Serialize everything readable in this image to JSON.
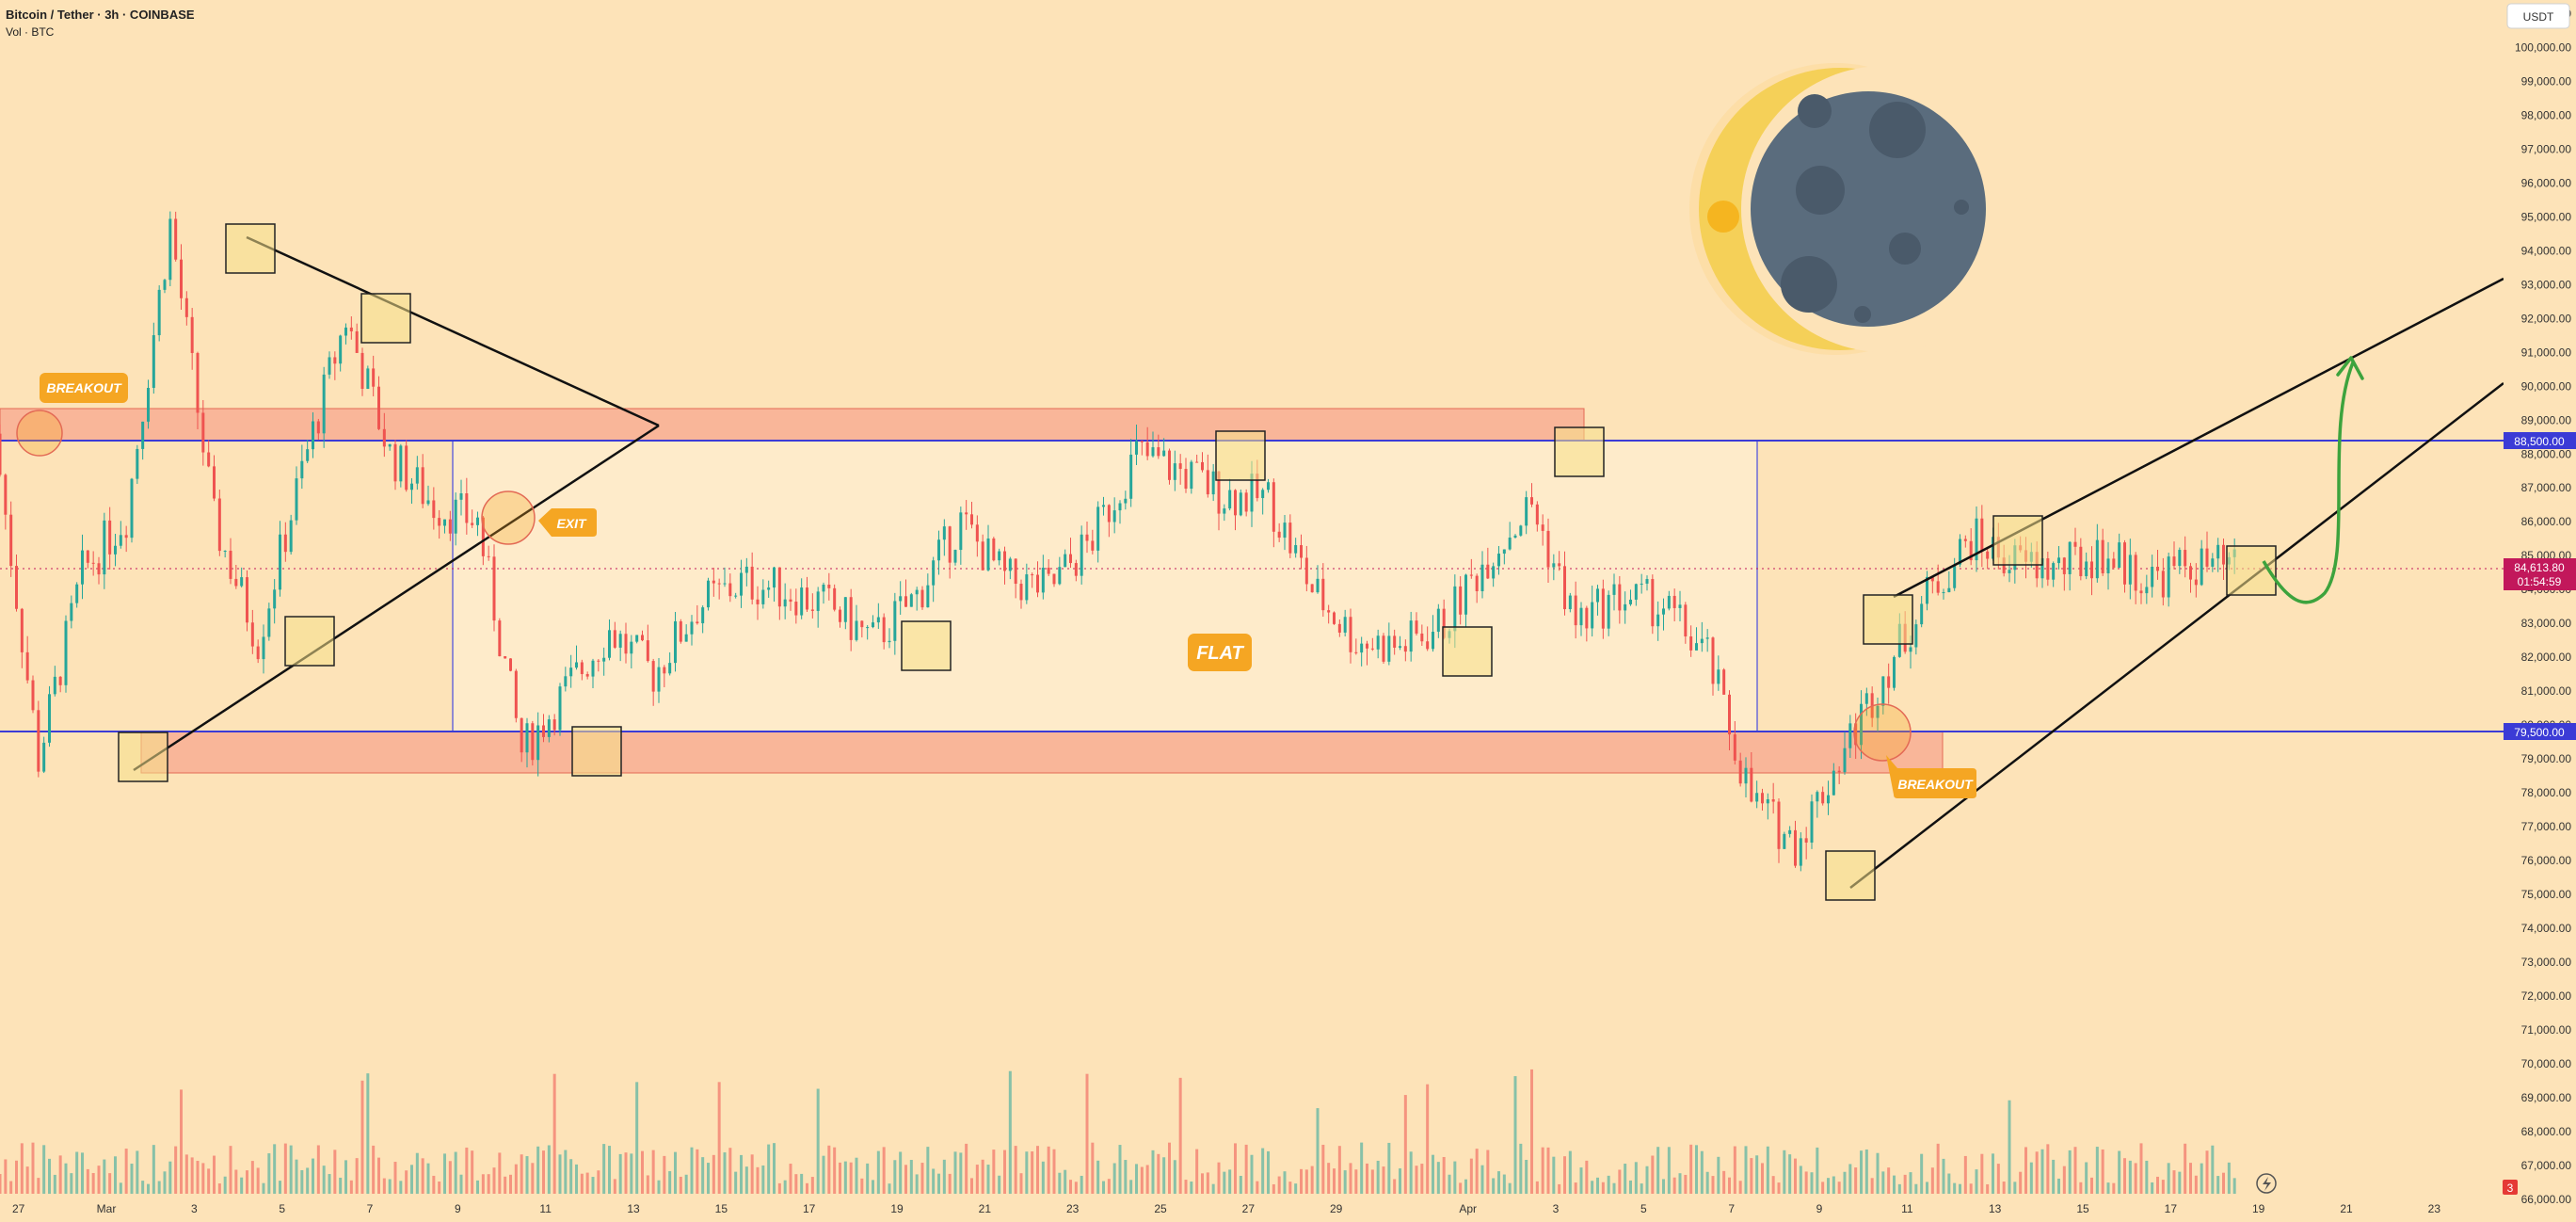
{
  "header": {
    "title": "Bitcoin / Tether · 3h · COINBASE",
    "volume_label": "Vol · BTC",
    "currency_button": "USDT"
  },
  "colors": {
    "background": "#fde3b8",
    "up": "#26a69a",
    "down": "#ef5350",
    "zone": "#f7a78f",
    "label": "#f5a623",
    "level_line": "#3b3bd6",
    "price_tag": "#c2185b",
    "arrow": "#3da33d"
  },
  "badges": {
    "price": "84,613.80",
    "countdown": "01:54:59",
    "level_high": "88,500.00",
    "level_low": "79,500.00",
    "alerts": "3"
  },
  "annotations": {
    "breakout_left": "BREAKOUT",
    "exit": "EXIT",
    "flat": "FLAT",
    "breakout_right": "BREAKOUT"
  },
  "chart_data": {
    "type": "candlestick",
    "title": "Bitcoin / Tether · 3h · COINBASE",
    "y_axis": {
      "ticks": [
        "66,000.00",
        "67,000.00",
        "68,000.00",
        "69,000.00",
        "70,000.00",
        "71,000.00",
        "72,000.00",
        "73,000.00",
        "74,000.00",
        "75,000.00",
        "76,000.00",
        "77,000.00",
        "78,000.00",
        "79,000.00",
        "80,000.00",
        "81,000.00",
        "82,000.00",
        "83,000.00",
        "84,000.00",
        "85,000.00",
        "86,000.00",
        "87,000.00",
        "88,000.00",
        "89,000.00",
        "90,000.00",
        "91,000.00",
        "92,000.00",
        "93,000.00",
        "94,000.00",
        "95,000.00",
        "96,000.00",
        "97,000.00",
        "98,000.00",
        "99,000.00",
        "100,000.00",
        "101,000.00"
      ],
      "range": [
        65500,
        101400
      ]
    },
    "x_axis": {
      "ticks": [
        "27",
        "Mar",
        "3",
        "5",
        "7",
        "9",
        "11",
        "13",
        "15",
        "17",
        "19",
        "21",
        "23",
        "25",
        "27",
        "29",
        "Apr",
        "3",
        "5",
        "7",
        "9",
        "11",
        "13",
        "15",
        "17",
        "19",
        "21",
        "23"
      ],
      "range": [
        "Feb 26",
        "Apr 24"
      ]
    },
    "price_path": [
      [
        "Feb 26",
        88600
      ],
      [
        "Feb 27",
        79000
      ],
      [
        "Feb 28",
        84500
      ],
      [
        "Mar 1",
        86200
      ],
      [
        "Mar 2",
        94800
      ],
      [
        "Mar 3",
        86000
      ],
      [
        "Mar 4",
        82500
      ],
      [
        "Mar 5",
        87500
      ],
      [
        "Mar 6",
        92000
      ],
      [
        "Mar 7",
        88000
      ],
      [
        "Mar 8",
        86500
      ],
      [
        "Mar 9",
        86000
      ],
      [
        "Mar 10",
        79200
      ],
      [
        "Mar 11",
        81000
      ],
      [
        "Mar 12",
        82800
      ],
      [
        "Mar 13",
        81500
      ],
      [
        "Mar 14",
        83500
      ],
      [
        "Mar 15",
        84200
      ],
      [
        "Mar 16",
        84000
      ],
      [
        "Mar 17",
        83500
      ],
      [
        "Mar 18",
        82500
      ],
      [
        "Mar 19",
        83800
      ],
      [
        "Mar 20",
        86000
      ],
      [
        "Mar 21",
        84300
      ],
      [
        "Mar 22",
        84000
      ],
      [
        "Mar 23",
        85500
      ],
      [
        "Mar 24",
        88000
      ],
      [
        "Mar 25",
        87500
      ],
      [
        "Mar 26",
        86800
      ],
      [
        "Mar 27",
        86700
      ],
      [
        "Mar 28",
        84000
      ],
      [
        "Mar 29",
        82500
      ],
      [
        "Mar 30",
        82300
      ],
      [
        "Mar 31",
        83000
      ],
      [
        "Apr 1",
        85000
      ],
      [
        "Apr 2",
        86500
      ],
      [
        "Apr 3",
        83000
      ],
      [
        "Apr 4",
        83800
      ],
      [
        "Apr 5",
        83500
      ],
      [
        "Apr 6",
        82000
      ],
      [
        "Apr 7",
        77800
      ],
      [
        "Apr 8",
        76500
      ],
      [
        "Apr 9",
        79000
      ],
      [
        "Apr 10",
        81500
      ],
      [
        "Apr 11",
        83800
      ],
      [
        "Apr 12",
        85500
      ],
      [
        "Apr 13",
        84800
      ],
      [
        "Apr 14",
        84600
      ],
      [
        "Apr 15",
        85100
      ],
      [
        "Apr 16",
        84300
      ],
      [
        "Apr 17",
        84700
      ],
      [
        "Apr 18",
        84600
      ]
    ],
    "levels": [
      88500,
      79500
    ],
    "zones": [
      {
        "from": 88500,
        "to": 89400
      },
      {
        "from": 78200,
        "to": 79500
      }
    ],
    "grid": false,
    "volume_series": "Vol · BTC"
  }
}
